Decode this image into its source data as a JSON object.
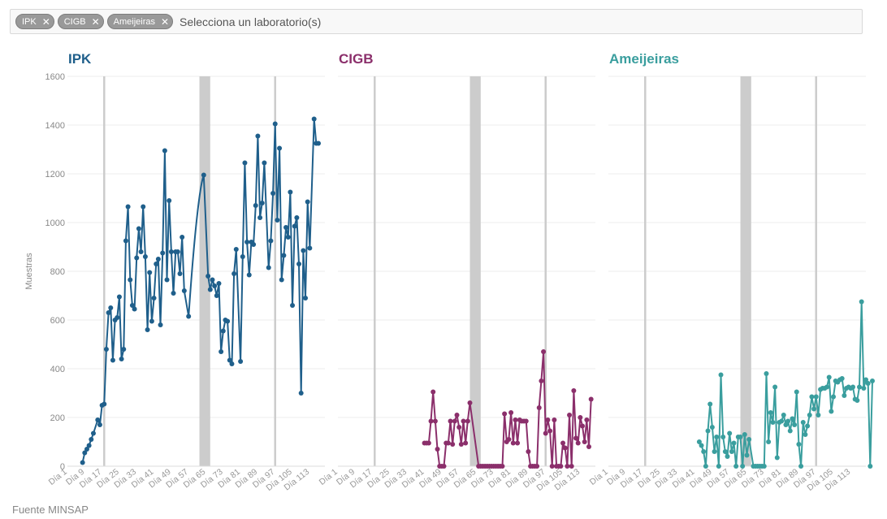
{
  "filter": {
    "tags": [
      {
        "label": "IPK"
      },
      {
        "label": "CIGB"
      },
      {
        "label": "Ameijeiras"
      }
    ],
    "placeholder": "Selecciona un laboratorio(s)",
    "remove_glyph": "✕"
  },
  "chart_data": {
    "type": "line",
    "ylabel": "Muestras",
    "ylim": [
      0,
      1600
    ],
    "yticks": [
      0,
      200,
      400,
      600,
      800,
      1000,
      1200,
      1400,
      1600
    ],
    "xlim": [
      1,
      120
    ],
    "xtick_days": [
      1,
      9,
      17,
      25,
      33,
      41,
      49,
      57,
      65,
      73,
      81,
      89,
      97,
      105,
      113
    ],
    "xtick_prefix": "Día ",
    "vertical_lines": [
      18,
      97
    ],
    "shaded_band": [
      62,
      67
    ],
    "line_color_ref": "#cccccc",
    "panels": [
      {
        "name": "IPK",
        "color": "#1f5f8b",
        "curve_segment": [
          57,
          64
        ],
        "points": [
          [
            8,
            15
          ],
          [
            9,
            55
          ],
          [
            10,
            70
          ],
          [
            11,
            85
          ],
          [
            12,
            110
          ],
          [
            13,
            135
          ],
          [
            15,
            190
          ],
          [
            16,
            170
          ],
          [
            17,
            250
          ],
          [
            18,
            255
          ],
          [
            19,
            480
          ],
          [
            20,
            630
          ],
          [
            21,
            650
          ],
          [
            22,
            435
          ],
          [
            23,
            600
          ],
          [
            24,
            610
          ],
          [
            25,
            695
          ],
          [
            26,
            440
          ],
          [
            27,
            480
          ],
          [
            28,
            925
          ],
          [
            29,
            1065
          ],
          [
            30,
            765
          ],
          [
            31,
            660
          ],
          [
            32,
            645
          ],
          [
            33,
            855
          ],
          [
            34,
            975
          ],
          [
            35,
            880
          ],
          [
            36,
            1065
          ],
          [
            37,
            860
          ],
          [
            38,
            560
          ],
          [
            39,
            795
          ],
          [
            40,
            595
          ],
          [
            41,
            690
          ],
          [
            42,
            830
          ],
          [
            43,
            850
          ],
          [
            44,
            580
          ],
          [
            45,
            875
          ],
          [
            46,
            1295
          ],
          [
            47,
            765
          ],
          [
            48,
            1090
          ],
          [
            49,
            880
          ],
          [
            50,
            710
          ],
          [
            51,
            880
          ],
          [
            52,
            880
          ],
          [
            53,
            790
          ],
          [
            54,
            940
          ],
          [
            55,
            720
          ],
          [
            57,
            615
          ],
          [
            64,
            1195
          ],
          [
            66,
            780
          ],
          [
            67,
            725
          ],
          [
            68,
            765
          ],
          [
            69,
            740
          ],
          [
            70,
            700
          ],
          [
            71,
            750
          ],
          [
            72,
            470
          ],
          [
            73,
            555
          ],
          [
            74,
            600
          ],
          [
            75,
            595
          ],
          [
            76,
            435
          ],
          [
            77,
            420
          ],
          [
            78,
            790
          ],
          [
            79,
            890
          ],
          [
            81,
            430
          ],
          [
            82,
            860
          ],
          [
            83,
            1245
          ],
          [
            84,
            920
          ],
          [
            85,
            785
          ],
          [
            86,
            920
          ],
          [
            87,
            910
          ],
          [
            88,
            1070
          ],
          [
            89,
            1355
          ],
          [
            90,
            1020
          ],
          [
            91,
            1080
          ],
          [
            92,
            1245
          ],
          [
            94,
            815
          ],
          [
            95,
            925
          ],
          [
            96,
            1120
          ],
          [
            97,
            1405
          ],
          [
            98,
            1010
          ],
          [
            99,
            1305
          ],
          [
            100,
            765
          ],
          [
            101,
            865
          ],
          [
            102,
            980
          ],
          [
            103,
            940
          ],
          [
            104,
            1125
          ],
          [
            105,
            660
          ],
          [
            106,
            985
          ],
          [
            107,
            1020
          ],
          [
            108,
            830
          ],
          [
            109,
            300
          ],
          [
            110,
            885
          ],
          [
            111,
            690
          ],
          [
            112,
            1085
          ],
          [
            113,
            895
          ],
          [
            115,
            1425
          ],
          [
            116,
            1325
          ],
          [
            117,
            1325
          ]
        ]
      },
      {
        "name": "CIGB",
        "color": "#8b2f6b",
        "curve_segment": [
          57,
          63
        ],
        "points": [
          [
            41,
            95
          ],
          [
            42,
            95
          ],
          [
            43,
            95
          ],
          [
            44,
            185
          ],
          [
            45,
            305
          ],
          [
            46,
            185
          ],
          [
            47,
            70
          ],
          [
            48,
            0
          ],
          [
            49,
            0
          ],
          [
            50,
            0
          ],
          [
            51,
            95
          ],
          [
            52,
            95
          ],
          [
            53,
            185
          ],
          [
            54,
            90
          ],
          [
            55,
            185
          ],
          [
            56,
            210
          ],
          [
            57,
            160
          ],
          [
            58,
            90
          ],
          [
            59,
            185
          ],
          [
            60,
            95
          ],
          [
            61,
            185
          ],
          [
            62,
            260
          ],
          [
            66,
            0
          ],
          [
            67,
            0
          ],
          [
            68,
            0
          ],
          [
            69,
            0
          ],
          [
            70,
            0
          ],
          [
            71,
            0
          ],
          [
            72,
            0
          ],
          [
            73,
            0
          ],
          [
            74,
            0
          ],
          [
            75,
            0
          ],
          [
            76,
            0
          ],
          [
            77,
            0
          ],
          [
            78,
            215
          ],
          [
            79,
            100
          ],
          [
            80,
            110
          ],
          [
            81,
            220
          ],
          [
            82,
            95
          ],
          [
            83,
            190
          ],
          [
            84,
            95
          ],
          [
            85,
            190
          ],
          [
            86,
            185
          ],
          [
            87,
            185
          ],
          [
            88,
            185
          ],
          [
            89,
            60
          ],
          [
            90,
            0
          ],
          [
            91,
            0
          ],
          [
            92,
            0
          ],
          [
            93,
            0
          ],
          [
            94,
            240
          ],
          [
            95,
            350
          ],
          [
            96,
            470
          ],
          [
            97,
            135
          ],
          [
            98,
            190
          ],
          [
            99,
            145
          ],
          [
            100,
            0
          ],
          [
            101,
            190
          ],
          [
            102,
            0
          ],
          [
            103,
            0
          ],
          [
            104,
            0
          ],
          [
            105,
            95
          ],
          [
            106,
            75
          ],
          [
            107,
            0
          ],
          [
            108,
            210
          ],
          [
            109,
            0
          ],
          [
            110,
            310
          ],
          [
            111,
            115
          ],
          [
            112,
            95
          ],
          [
            113,
            200
          ],
          [
            114,
            165
          ],
          [
            115,
            100
          ],
          [
            116,
            190
          ],
          [
            117,
            80
          ],
          [
            118,
            275
          ]
        ]
      },
      {
        "name": "Ameijeiras",
        "color": "#3a9e9e",
        "curve_segment": null,
        "points": [
          [
            43,
            100
          ],
          [
            44,
            85
          ],
          [
            45,
            60
          ],
          [
            46,
            0
          ],
          [
            47,
            145
          ],
          [
            48,
            255
          ],
          [
            49,
            160
          ],
          [
            50,
            60
          ],
          [
            51,
            120
          ],
          [
            52,
            0
          ],
          [
            53,
            375
          ],
          [
            54,
            120
          ],
          [
            55,
            60
          ],
          [
            56,
            40
          ],
          [
            57,
            135
          ],
          [
            58,
            60
          ],
          [
            59,
            95
          ],
          [
            60,
            0
          ],
          [
            61,
            120
          ],
          [
            62,
            120
          ],
          [
            63,
            0
          ],
          [
            64,
            130
          ],
          [
            65,
            45
          ],
          [
            66,
            110
          ],
          [
            68,
            0
          ],
          [
            69,
            0
          ],
          [
            70,
            0
          ],
          [
            71,
            0
          ],
          [
            72,
            0
          ],
          [
            73,
            0
          ],
          [
            74,
            380
          ],
          [
            75,
            100
          ],
          [
            76,
            220
          ],
          [
            77,
            180
          ],
          [
            78,
            325
          ],
          [
            79,
            35
          ],
          [
            80,
            180
          ],
          [
            81,
            185
          ],
          [
            82,
            210
          ],
          [
            83,
            170
          ],
          [
            84,
            185
          ],
          [
            85,
            145
          ],
          [
            86,
            195
          ],
          [
            87,
            170
          ],
          [
            88,
            305
          ],
          [
            89,
            90
          ],
          [
            90,
            0
          ],
          [
            91,
            180
          ],
          [
            92,
            130
          ],
          [
            93,
            165
          ],
          [
            94,
            210
          ],
          [
            95,
            285
          ],
          [
            96,
            235
          ],
          [
            97,
            285
          ],
          [
            98,
            210
          ],
          [
            99,
            315
          ],
          [
            100,
            320
          ],
          [
            101,
            320
          ],
          [
            102,
            325
          ],
          [
            103,
            365
          ],
          [
            104,
            225
          ],
          [
            105,
            285
          ],
          [
            106,
            350
          ],
          [
            107,
            345
          ],
          [
            108,
            355
          ],
          [
            109,
            360
          ],
          [
            110,
            290
          ],
          [
            111,
            320
          ],
          [
            112,
            325
          ],
          [
            113,
            320
          ],
          [
            114,
            325
          ],
          [
            115,
            275
          ],
          [
            116,
            270
          ],
          [
            117,
            325
          ],
          [
            118,
            675
          ],
          [
            119,
            320
          ],
          [
            120,
            355
          ],
          [
            121,
            340
          ],
          [
            122,
            0
          ],
          [
            123,
            350
          ]
        ]
      }
    ]
  },
  "footer": {
    "source_label": "Fuente MINSAP"
  }
}
